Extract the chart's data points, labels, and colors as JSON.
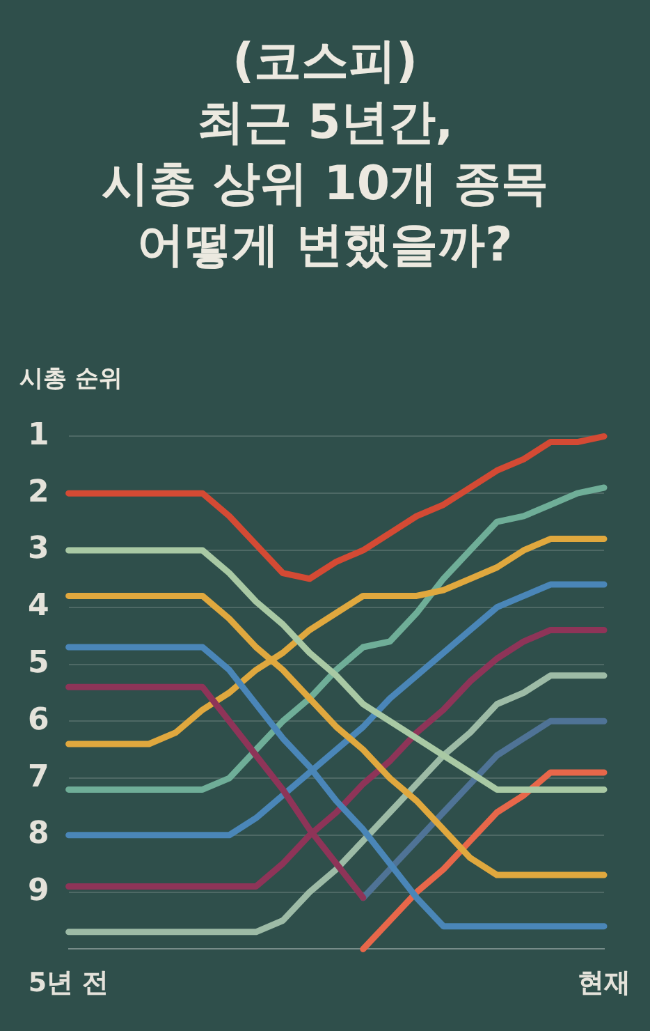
{
  "chart_data": {
    "type": "line",
    "title": "(코스피)\n최근 5년간,\n시총 상위 10개 종목\n어떻게 변했을까?",
    "ylabel": "시총 순위",
    "categories": [
      "5년 전",
      null,
      null,
      null,
      null,
      null,
      null,
      null,
      null,
      null,
      null,
      null,
      null,
      null,
      null,
      null,
      null,
      null,
      null,
      null,
      "현재"
    ],
    "ylim": [
      10,
      1
    ],
    "yticks": [
      1,
      2,
      3,
      4,
      5,
      6,
      7,
      8,
      9
    ],
    "grid": "y",
    "legend": false,
    "marker": "none",
    "line_style": "solid",
    "series": [
      {
        "color": "#d44a34",
        "values": [
          2,
          2,
          2,
          2,
          2,
          2,
          2.4,
          2.9,
          3.4,
          3.5,
          3.2,
          3,
          2.7,
          2.4,
          2.2,
          1.9,
          1.6,
          1.4,
          1.1,
          1.1,
          1
        ]
      },
      {
        "color": "#a9c9a4",
        "values": [
          3,
          3,
          3,
          3,
          3,
          3,
          3.4,
          3.9,
          4.3,
          4.8,
          5.2,
          5.7,
          6,
          6.3,
          6.6,
          6.9,
          7.2,
          7.2,
          7.2,
          7.2,
          7.2
        ]
      },
      {
        "color": "#e0a83e",
        "values": [
          3.8,
          3.8,
          3.8,
          3.8,
          3.8,
          3.8,
          4.2,
          4.7,
          5.1,
          5.6,
          6.1,
          6.5,
          7,
          7.4,
          7.9,
          8.4,
          8.7,
          8.7,
          8.7,
          8.7,
          8.7
        ]
      },
      {
        "color": "#4a86b8",
        "values": [
          4.7,
          4.7,
          4.7,
          4.7,
          4.7,
          4.7,
          5.1,
          5.7,
          6.3,
          6.8,
          7.4,
          7.9,
          8.5,
          9.1,
          9.6,
          9.6,
          9.6,
          9.6,
          9.6,
          9.6,
          9.6
        ]
      },
      {
        "color": "#8e3458",
        "values": [
          5.4,
          5.4,
          5.4,
          5.4,
          5.4,
          5.4,
          6,
          6.6,
          7.2,
          7.9,
          8.5,
          9.1,
          null,
          null,
          null,
          null,
          null,
          null,
          null,
          null,
          null
        ]
      },
      {
        "color": "#e0a83e",
        "values": [
          6.4,
          6.4,
          6.4,
          6.4,
          6.2,
          5.8,
          5.5,
          5.1,
          4.8,
          4.4,
          4.1,
          3.8,
          3.8,
          3.8,
          3.7,
          3.5,
          3.3,
          3,
          2.8,
          2.8,
          2.8
        ]
      },
      {
        "color": "#6fae98",
        "values": [
          7.2,
          7.2,
          7.2,
          7.2,
          7.2,
          7.2,
          7,
          6.5,
          6,
          5.6,
          5.1,
          4.7,
          4.6,
          4.1,
          3.5,
          3,
          2.5,
          2.4,
          2.2,
          2,
          1.9
        ]
      },
      {
        "color": "#4a86b8",
        "values": [
          8,
          8,
          8,
          8,
          8,
          8,
          8,
          7.7,
          7.3,
          6.9,
          6.5,
          6.1,
          5.6,
          5.2,
          4.8,
          4.4,
          4,
          3.8,
          3.6,
          3.6,
          3.6
        ]
      },
      {
        "color": "#8e3458",
        "values": [
          8.9,
          8.9,
          8.9,
          8.9,
          8.9,
          8.9,
          8.9,
          8.9,
          8.5,
          8,
          7.6,
          7.1,
          6.7,
          6.2,
          5.8,
          5.3,
          4.9,
          4.6,
          4.4,
          4.4,
          4.4
        ]
      },
      {
        "color": "#9dbba6",
        "values": [
          9.7,
          9.7,
          9.7,
          9.7,
          9.7,
          9.7,
          9.7,
          9.7,
          9.5,
          9,
          8.6,
          8.1,
          7.6,
          7.1,
          6.6,
          6.2,
          5.7,
          5.5,
          5.2,
          5.2,
          5.2
        ]
      },
      {
        "color": "#e8674a",
        "values": [
          null,
          null,
          null,
          null,
          null,
          null,
          null,
          null,
          null,
          null,
          null,
          10,
          9.5,
          9,
          8.6,
          8.1,
          7.6,
          7.3,
          6.9,
          6.9,
          6.9
        ]
      },
      {
        "color": "#4f7396",
        "values": [
          null,
          null,
          null,
          null,
          null,
          null,
          null,
          null,
          null,
          null,
          null,
          9.1,
          8.6,
          8.1,
          7.6,
          7.1,
          6.6,
          6.3,
          6,
          6,
          6
        ]
      }
    ]
  }
}
